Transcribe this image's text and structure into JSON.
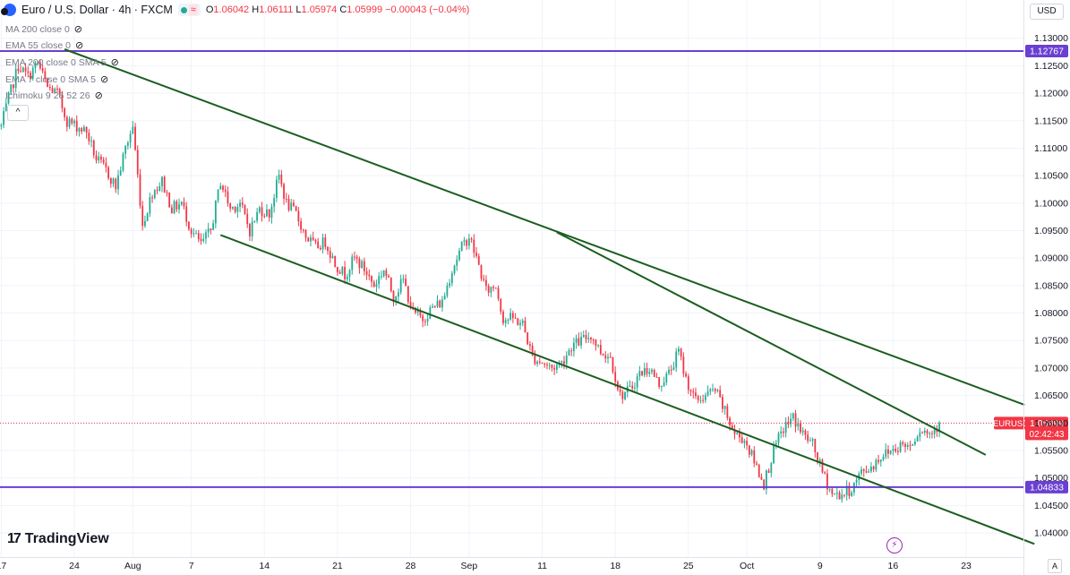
{
  "header": {
    "title": "Euro / U.S. Dollar · 4h · FXCM",
    "wave_glyph": "≈",
    "o_key": "O",
    "o_val": "1.06042",
    "h_key": "H",
    "h_val": "1.06111",
    "l_key": "L",
    "l_val": "1.05974",
    "c_key": "C",
    "c_val": "1.05999",
    "change": "−0.00043 (−0.04%)"
  },
  "indicators": [
    {
      "label": "MA 200 close 0"
    },
    {
      "label": "EMA 55 close 0"
    },
    {
      "label": "EMA 200 close 0 SMA 5"
    },
    {
      "label": "EMA 7 close 0 SMA 5"
    },
    {
      "label": "Ichimoku 9 26 52 26"
    }
  ],
  "toolbar": {
    "currency": "USD",
    "collapse_glyph": "^",
    "auto_label": "A"
  },
  "brand": {
    "name": "TradingView",
    "mark": "17"
  },
  "colors": {
    "up": "#22ab94",
    "down": "#f23645",
    "trend": "#1b5e20",
    "level": "#6a3fd1",
    "price_label": "#f23645",
    "grid": "#f0f3fa",
    "axis_text": "#131722"
  },
  "chart_data": {
    "type": "candlestick",
    "instrument": "EURUSD",
    "x_tick_labels": [
      "17",
      "24",
      "Aug",
      "7",
      "14",
      "21",
      "28",
      "Sep",
      "11",
      "18",
      "25",
      "Oct",
      "9",
      "16",
      "23"
    ],
    "x_ticks": [
      {
        "label": "17",
        "bar": 0
      },
      {
        "label": "24",
        "bar": 30
      },
      {
        "label": "Aug",
        "bar": 54
      },
      {
        "label": "7",
        "bar": 78
      },
      {
        "label": "14",
        "bar": 108
      },
      {
        "label": "21",
        "bar": 138
      },
      {
        "label": "28",
        "bar": 168
      },
      {
        "label": "Sep",
        "bar": 192
      },
      {
        "label": "11",
        "bar": 222
      },
      {
        "label": "18",
        "bar": 252
      },
      {
        "label": "25",
        "bar": 282
      },
      {
        "label": "Oct",
        "bar": 306
      },
      {
        "label": "9",
        "bar": 336
      },
      {
        "label": "16",
        "bar": 366
      },
      {
        "label": "23",
        "bar": 396
      }
    ],
    "bar_count": 420,
    "y_tick_labels": [
      "1.13000",
      "1.12500",
      "1.12000",
      "1.11500",
      "1.11000",
      "1.10500",
      "1.10000",
      "1.09500",
      "1.09000",
      "1.08500",
      "1.08000",
      "1.07500",
      "1.07000",
      "1.06500",
      "1.06000",
      "1.05500",
      "1.05000",
      "1.04500",
      "1.04000"
    ],
    "ylim": [
      1.0356,
      1.1324
    ],
    "path_points": [
      [
        0,
        1.114
      ],
      [
        3,
        1.119
      ],
      [
        7,
        1.125
      ],
      [
        11,
        1.123
      ],
      [
        15,
        1.1255
      ],
      [
        19,
        1.121
      ],
      [
        23,
        1.12
      ],
      [
        27,
        1.115
      ],
      [
        31,
        1.114
      ],
      [
        35,
        1.113
      ],
      [
        39,
        1.108
      ],
      [
        43,
        1.106
      ],
      [
        47,
        1.103
      ],
      [
        51,
        1.11
      ],
      [
        54,
        1.114
      ],
      [
        58,
        1.096
      ],
      [
        62,
        1.102
      ],
      [
        66,
        1.104
      ],
      [
        70,
        1.099
      ],
      [
        74,
        1.1
      ],
      [
        78,
        1.095
      ],
      [
        82,
        1.0925
      ],
      [
        86,
        1.095
      ],
      [
        90,
        1.104
      ],
      [
        94,
        1.099
      ],
      [
        98,
        1.1
      ],
      [
        102,
        1.095
      ],
      [
        106,
        1.099
      ],
      [
        110,
        1.098
      ],
      [
        114,
        1.105
      ],
      [
        117,
        1.1
      ],
      [
        121,
        1.098
      ],
      [
        125,
        1.094
      ],
      [
        129,
        1.092
      ],
      [
        133,
        1.093
      ],
      [
        137,
        1.089
      ],
      [
        141,
        1.087
      ],
      [
        145,
        1.09
      ],
      [
        149,
        1.088
      ],
      [
        153,
        1.085
      ],
      [
        157,
        1.088
      ],
      [
        161,
        1.083
      ],
      [
        165,
        1.086
      ],
      [
        169,
        1.08
      ],
      [
        173,
        1.079
      ],
      [
        177,
        1.081
      ],
      [
        181,
        1.082
      ],
      [
        185,
        1.088
      ],
      [
        189,
        1.092
      ],
      [
        192,
        1.094
      ],
      [
        195,
        1.09
      ],
      [
        199,
        1.084
      ],
      [
        203,
        1.085
      ],
      [
        206,
        1.079
      ],
      [
        210,
        1.079
      ],
      [
        214,
        1.078
      ],
      [
        218,
        1.072
      ],
      [
        222,
        1.071
      ],
      [
        226,
        1.07
      ],
      [
        230,
        1.071
      ],
      [
        234,
        1.074
      ],
      [
        238,
        1.075
      ],
      [
        242,
        1.076
      ],
      [
        246,
        1.073
      ],
      [
        250,
        1.072
      ],
      [
        254,
        1.065
      ],
      [
        258,
        1.066
      ],
      [
        262,
        1.069
      ],
      [
        266,
        1.07
      ],
      [
        270,
        1.067
      ],
      [
        274,
        1.069
      ],
      [
        278,
        1.073
      ],
      [
        281,
        1.068
      ],
      [
        285,
        1.064
      ],
      [
        289,
        1.065
      ],
      [
        293,
        1.066
      ],
      [
        297,
        1.062
      ],
      [
        301,
        1.058
      ],
      [
        305,
        1.057
      ],
      [
        309,
        1.053
      ],
      [
        313,
        1.049
      ],
      [
        317,
        1.055
      ],
      [
        321,
        1.059
      ],
      [
        325,
        1.061
      ],
      [
        329,
        1.058
      ],
      [
        333,
        1.056
      ],
      [
        337,
        1.051
      ],
      [
        341,
        1.047
      ],
      [
        345,
        1.047
      ],
      [
        349,
        1.048
      ],
      [
        353,
        1.051
      ],
      [
        357,
        1.052
      ],
      [
        361,
        1.054
      ],
      [
        365,
        1.055
      ],
      [
        369,
        1.056
      ],
      [
        373,
        1.056
      ],
      [
        377,
        1.059
      ],
      [
        381,
        1.058
      ],
      [
        385,
        1.06
      ]
    ],
    "horizontal_levels": [
      {
        "value": 1.12767,
        "label": "1.12767"
      },
      {
        "value": 1.04833,
        "label": "1.04833"
      }
    ],
    "trendlines": [
      {
        "from": [
          26,
          1.128
        ],
        "to": [
          420,
          1.0633
        ]
      },
      {
        "from": [
          90,
          1.0942
        ],
        "to": [
          424,
          1.038
        ]
      },
      {
        "from": [
          228,
          1.0947
        ],
        "to": [
          404,
          1.0542
        ]
      }
    ],
    "current_price": {
      "value": 1.05999,
      "symbol_label": "EURUSD",
      "price_label": "1.05999",
      "countdown": "02:42:43"
    }
  }
}
